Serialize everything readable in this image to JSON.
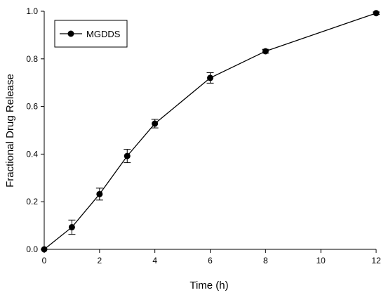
{
  "chart_data": {
    "type": "line",
    "title": "",
    "xlabel": "Time (h)",
    "ylabel": "Fractional Drug Release",
    "xlim": [
      0,
      12
    ],
    "ylim": [
      0,
      1.0
    ],
    "xticks": [
      0,
      2,
      4,
      6,
      8,
      10,
      12
    ],
    "xtick_labels": [
      "0",
      "2",
      "4",
      "6",
      "8",
      "10",
      "12"
    ],
    "yticks": [
      0,
      0.2,
      0.4,
      0.6,
      0.8,
      1.0
    ],
    "ytick_labels": [
      "0.0",
      "0.2",
      "0.4",
      "0.6",
      "0.8",
      "1.0"
    ],
    "grid": false,
    "legend_position": "top-left",
    "series": [
      {
        "name": "MGDDS",
        "color": "#000000",
        "marker": "filled-circle",
        "x": [
          0,
          1,
          2,
          3,
          4,
          6,
          8,
          12
        ],
        "y": [
          0.0,
          0.093,
          0.232,
          0.392,
          0.528,
          0.72,
          0.832,
          0.992
        ],
        "error": [
          0.0,
          0.03,
          0.025,
          0.028,
          0.018,
          0.022,
          0.008,
          0.005
        ]
      }
    ]
  }
}
